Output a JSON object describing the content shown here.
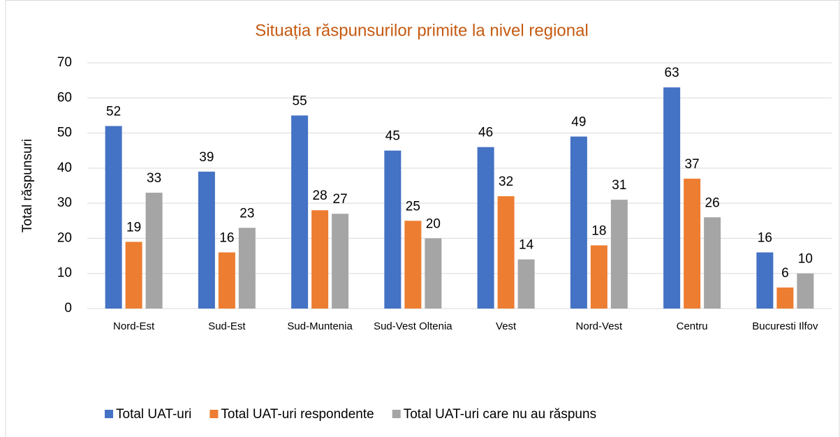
{
  "chart_data": {
    "type": "bar",
    "title": "Situația răspunsurilor primite la nivel regional",
    "ylabel": "Total răspunsuri",
    "categories": [
      "Nord-Est",
      "Sud-Est",
      "Sud-Muntenia",
      "Sud-Vest Oltenia",
      "Vest",
      "Nord-Vest",
      "Centru",
      "Bucuresti Ilfov"
    ],
    "series": [
      {
        "name": "Total UAT-uri",
        "color": "#4472c4",
        "values": [
          52,
          39,
          55,
          45,
          46,
          49,
          63,
          16
        ]
      },
      {
        "name": "Total UAT-uri respondente",
        "color": "#ed7d31",
        "values": [
          19,
          16,
          28,
          25,
          32,
          18,
          37,
          6
        ]
      },
      {
        "name": "Total UAT-uri care nu au răspuns",
        "color": "#a5a5a5",
        "values": [
          33,
          23,
          27,
          20,
          14,
          31,
          26,
          10
        ]
      }
    ],
    "ylim": [
      0,
      70
    ],
    "yticks": [
      0,
      10,
      20,
      30,
      40,
      50,
      60,
      70
    ],
    "grid": true,
    "legend": "bottom"
  }
}
